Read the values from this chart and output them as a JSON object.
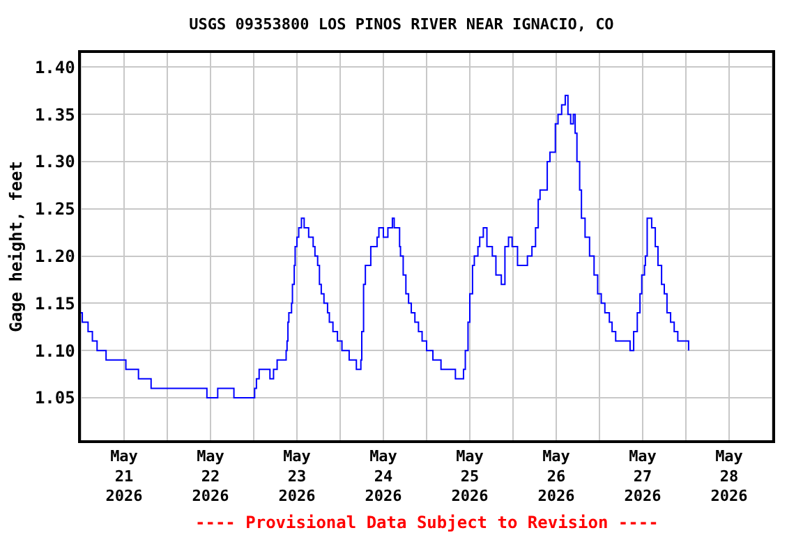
{
  "chart_data": {
    "type": "step",
    "title": "USGS 09353800 LOS PINOS RIVER NEAR IGNACIO, CO",
    "ylabel": "Gage height, feet",
    "annotations": [
      "---- Provisional Data Subject to Revision ----"
    ],
    "x": [
      "2026-05-21T00:00",
      "2026-05-21T00:24",
      "2026-05-21T02:00",
      "2026-05-21T03:12",
      "2026-05-21T04:30",
      "2026-05-21T07:00",
      "2026-05-21T12:30",
      "2026-05-21T16:00",
      "2026-05-21T19:30",
      "2026-05-22T11:00",
      "2026-05-22T14:00",
      "2026-05-22T18:30",
      "2026-05-23T00:15",
      "2026-05-23T00:45",
      "2026-05-23T01:30",
      "2026-05-23T04:30",
      "2026-05-23T05:30",
      "2026-05-23T06:30",
      "2026-05-23T09:00",
      "2026-05-23T09:15",
      "2026-05-23T09:30",
      "2026-05-23T09:45",
      "2026-05-23T10:30",
      "2026-05-23T10:45",
      "2026-05-23T11:15",
      "2026-05-23T11:30",
      "2026-05-23T12:00",
      "2026-05-23T12:30",
      "2026-05-23T13:15",
      "2026-05-23T14:00",
      "2026-05-23T15:15",
      "2026-05-23T16:30",
      "2026-05-23T17:00",
      "2026-05-23T17:45",
      "2026-05-23T18:15",
      "2026-05-23T18:45",
      "2026-05-23T19:30",
      "2026-05-23T20:30",
      "2026-05-23T21:00",
      "2026-05-23T22:00",
      "2026-05-23T23:15",
      "2026-05-24T00:30",
      "2026-05-24T02:30",
      "2026-05-24T04:30",
      "2026-05-24T05:45",
      "2026-05-24T06:00",
      "2026-05-24T06:30",
      "2026-05-24T07:00",
      "2026-05-24T08:30",
      "2026-05-24T10:15",
      "2026-05-24T10:45",
      "2026-05-24T12:00",
      "2026-05-24T13:15",
      "2026-05-24T14:30",
      "2026-05-24T15:00",
      "2026-05-24T16:30",
      "2026-05-24T16:45",
      "2026-05-24T17:30",
      "2026-05-24T18:15",
      "2026-05-24T19:00",
      "2026-05-24T19:45",
      "2026-05-24T20:45",
      "2026-05-24T21:45",
      "2026-05-24T22:45",
      "2026-05-25T00:00",
      "2026-05-25T01:45",
      "2026-05-25T04:00",
      "2026-05-25T08:00",
      "2026-05-25T10:15",
      "2026-05-25T10:45",
      "2026-05-25T11:30",
      "2026-05-25T12:00",
      "2026-05-25T12:45",
      "2026-05-25T13:15",
      "2026-05-25T14:15",
      "2026-05-25T14:45",
      "2026-05-25T15:45",
      "2026-05-25T16:45",
      "2026-05-25T18:15",
      "2026-05-25T19:15",
      "2026-05-25T20:45",
      "2026-05-25T21:45",
      "2026-05-25T22:45",
      "2026-05-25T23:45",
      "2026-05-26T01:15",
      "2026-05-26T04:00",
      "2026-05-26T05:15",
      "2026-05-26T06:15",
      "2026-05-26T07:00",
      "2026-05-26T07:30",
      "2026-05-26T09:30",
      "2026-05-26T10:15",
      "2026-05-26T11:45",
      "2026-05-26T12:30",
      "2026-05-26T13:30",
      "2026-05-26T14:30",
      "2026-05-26T15:15",
      "2026-05-26T16:00",
      "2026-05-26T16:45",
      "2026-05-26T17:15",
      "2026-05-26T17:45",
      "2026-05-26T18:30",
      "2026-05-26T19:00",
      "2026-05-26T20:00",
      "2026-05-26T21:15",
      "2026-05-26T22:30",
      "2026-05-26T23:30",
      "2026-05-27T00:30",
      "2026-05-27T01:30",
      "2026-05-27T02:45",
      "2026-05-27T03:30",
      "2026-05-27T04:30",
      "2026-05-27T08:30",
      "2026-05-27T09:30",
      "2026-05-27T10:30",
      "2026-05-27T11:15",
      "2026-05-27T11:45",
      "2026-05-27T12:30",
      "2026-05-27T12:45",
      "2026-05-27T13:15",
      "2026-05-27T14:30",
      "2026-05-27T15:30",
      "2026-05-27T16:15",
      "2026-05-27T17:15",
      "2026-05-27T18:00",
      "2026-05-27T18:45",
      "2026-05-27T19:45",
      "2026-05-27T20:45",
      "2026-05-27T21:45",
      "2026-05-28T00:45"
    ],
    "series": [
      {
        "color": "#0000ff",
        "values": [
          1.14,
          1.13,
          1.12,
          1.11,
          1.1,
          1.09,
          1.08,
          1.07,
          1.06,
          1.05,
          1.06,
          1.05,
          1.06,
          1.07,
          1.08,
          1.07,
          1.08,
          1.09,
          1.1,
          1.11,
          1.13,
          1.14,
          1.15,
          1.17,
          1.19,
          1.21,
          1.22,
          1.23,
          1.24,
          1.23,
          1.22,
          1.21,
          1.2,
          1.19,
          1.17,
          1.16,
          1.15,
          1.14,
          1.13,
          1.12,
          1.11,
          1.1,
          1.09,
          1.08,
          1.09,
          1.12,
          1.17,
          1.19,
          1.21,
          1.22,
          1.23,
          1.22,
          1.23,
          1.24,
          1.23,
          1.21,
          1.2,
          1.18,
          1.16,
          1.15,
          1.14,
          1.13,
          1.12,
          1.11,
          1.1,
          1.09,
          1.08,
          1.07,
          1.08,
          1.1,
          1.13,
          1.16,
          1.19,
          1.2,
          1.21,
          1.22,
          1.23,
          1.21,
          1.2,
          1.18,
          1.17,
          1.21,
          1.22,
          1.21,
          1.19,
          1.2,
          1.21,
          1.23,
          1.26,
          1.27,
          1.3,
          1.31,
          1.34,
          1.35,
          1.36,
          1.37,
          1.35,
          1.34,
          1.35,
          1.33,
          1.3,
          1.27,
          1.24,
          1.22,
          1.2,
          1.18,
          1.16,
          1.15,
          1.14,
          1.13,
          1.12,
          1.11,
          1.1,
          1.12,
          1.14,
          1.16,
          1.18,
          1.19,
          1.2,
          1.24,
          1.23,
          1.21,
          1.19,
          1.17,
          1.16,
          1.14,
          1.13,
          1.12,
          1.11,
          1.1
        ]
      }
    ],
    "xlim": [
      "2026-05-21T00:00",
      "2026-05-29T00:00"
    ],
    "xticks": [
      {
        "value": "2026-05-21T00:00",
        "label": null
      },
      {
        "value": "2026-05-22T00:00",
        "label": null
      },
      {
        "value": "2026-05-23T00:00",
        "label": null
      },
      {
        "value": "2026-05-24T00:00",
        "label": null
      },
      {
        "value": "2026-05-25T00:00",
        "label": null
      },
      {
        "value": "2026-05-26T00:00",
        "label": null
      },
      {
        "value": "2026-05-27T00:00",
        "label": null
      },
      {
        "value": "2026-05-28T00:00",
        "label": null
      },
      {
        "value": "2026-05-29T00:00",
        "label": null
      },
      {
        "value": "2026-05-21T12:00",
        "label": "May\n21\n2026"
      },
      {
        "value": "2026-05-22T12:00",
        "label": "May\n22\n2026"
      },
      {
        "value": "2026-05-23T12:00",
        "label": "May\n23\n2026"
      },
      {
        "value": "2026-05-24T12:00",
        "label": "May\n24\n2026"
      },
      {
        "value": "2026-05-25T12:00",
        "label": "May\n25\n2026"
      },
      {
        "value": "2026-05-26T12:00",
        "label": "May\n26\n2026"
      },
      {
        "value": "2026-05-27T12:00",
        "label": "May\n27\n2026"
      },
      {
        "value": "2026-05-28T12:00",
        "label": "May\n28\n2026"
      }
    ],
    "ylim": [
      1.005,
      1.415
    ],
    "yticks": [
      {
        "value": 1.05,
        "label": "1.05"
      },
      {
        "value": 1.1,
        "label": "1.10"
      },
      {
        "value": 1.15,
        "label": "1.15"
      },
      {
        "value": 1.2,
        "label": "1.20"
      },
      {
        "value": 1.25,
        "label": "1.25"
      },
      {
        "value": 1.3,
        "label": "1.30"
      },
      {
        "value": 1.35,
        "label": "1.35"
      },
      {
        "value": 1.4,
        "label": "1.40"
      }
    ],
    "grid": true
  }
}
